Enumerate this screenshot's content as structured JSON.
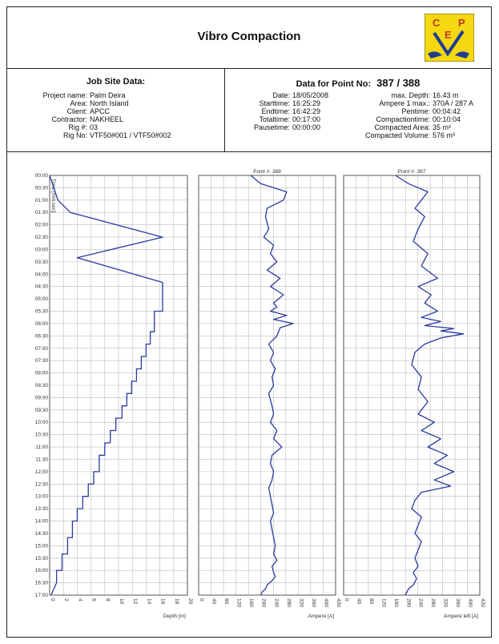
{
  "header": {
    "title": "Vibro Compaction",
    "logo_text": [
      "C",
      "E",
      "P"
    ],
    "logo_colors": {
      "bg": "#f5d712",
      "mark": "#1f3e91"
    }
  },
  "job_site": {
    "title": "Job Site Data:",
    "rows": [
      {
        "key": "Project name:",
        "value": "Palm Deira"
      },
      {
        "key": "Area:",
        "value": "North Island"
      },
      {
        "key": "Client:",
        "value": "APCC"
      },
      {
        "key": "Contractor:",
        "value": "NAKHEEL"
      },
      {
        "key": "Rig #:",
        "value": "03"
      },
      {
        "key": "Rig No:",
        "value": "VTF50#001 / VTF50#002"
      }
    ]
  },
  "point_data": {
    "title_prefix": "Data for Point No:",
    "title_value": "387 / 388",
    "left_rows": [
      {
        "key": "Date:",
        "value": "18/05/2008"
      },
      {
        "key": "Starttime:",
        "value": "16:25:29"
      },
      {
        "key": "Endtime:",
        "value": "16:42:29"
      },
      {
        "key": "Totaltime:",
        "value": "00:17:00"
      },
      {
        "key": "Pausetime:",
        "value": "00:00:00"
      }
    ],
    "right_rows": [
      {
        "key": "max. Depth:",
        "value": "16.43 m"
      },
      {
        "key": "Ampere 1 max.:",
        "value": "370A  / 287 A"
      },
      {
        "key": "Pentime:",
        "value": "00:04:42"
      },
      {
        "key": "Compactiontime:",
        "value": "00:10:04"
      },
      {
        "key": "Compacted Area:",
        "value": "35 m²"
      },
      {
        "key": "Compacted Volume:",
        "value": "576 m³"
      }
    ]
  },
  "chart_data": [
    {
      "type": "line",
      "title": "",
      "ylabel": "Time [min:sec]",
      "xlabel": "Depth [m]",
      "xlim": [
        0,
        20
      ],
      "xticks": [
        "0",
        "2",
        "4",
        "6",
        "8",
        "10",
        "12",
        "14",
        "16",
        "18",
        "20"
      ],
      "yticks": [
        "00:00",
        "00:30",
        "01:00",
        "01:30",
        "02:00",
        "02:30",
        "03:00",
        "03:30",
        "04:00",
        "04:30",
        "05:00",
        "05:30",
        "06:00",
        "06:30",
        "07:00",
        "07:30",
        "08:00",
        "08:30",
        "09:00",
        "09:30",
        "10:00",
        "10:30",
        "11:00",
        "11:30",
        "12:00",
        "12:30",
        "13:00",
        "13:30",
        "14:00",
        "14:30",
        "15:00",
        "15:30",
        "16:00",
        "16:30",
        "17:00"
      ],
      "ylim_seconds": [
        0,
        1020
      ],
      "series": [
        {
          "color": "#2b3a9e",
          "x_depth": [
            0,
            1.2,
            3,
            16.4,
            4,
            16.4,
            16.4,
            15.2,
            15.2,
            14.6,
            14.6,
            14.0,
            14.0,
            13.3,
            13.3,
            12.6,
            12.6,
            11.9,
            11.9,
            11.2,
            11.2,
            10.5,
            10.5,
            9.6,
            9.6,
            8.8,
            8.8,
            8.0,
            8.0,
            7.2,
            7.2,
            6.4,
            6.4,
            5.6,
            5.6,
            4.8,
            4.8,
            4.0,
            4.0,
            3.3,
            3.3,
            2.6,
            2.6,
            1.8,
            1.8,
            1.0,
            1.0,
            0.2
          ],
          "y_seconds": [
            0,
            60,
            90,
            150,
            200,
            260,
            330,
            330,
            380,
            380,
            410,
            410,
            440,
            440,
            470,
            470,
            500,
            500,
            530,
            530,
            560,
            560,
            590,
            590,
            620,
            620,
            650,
            650,
            680,
            680,
            720,
            720,
            750,
            750,
            780,
            780,
            810,
            810,
            840,
            840,
            880,
            880,
            920,
            920,
            960,
            960,
            990,
            1020
          ]
        }
      ]
    },
    {
      "type": "line",
      "title": "Point #: 388",
      "xlabel": "Ampere [A]",
      "xlim": [
        0,
        420
      ],
      "xticks": [
        "0",
        "40",
        "80",
        "120",
        "160",
        "200",
        "240",
        "280",
        "320",
        "360",
        "400",
        "420"
      ],
      "ylim_seconds": [
        0,
        1020
      ],
      "series": [
        {
          "color": "#2b3a9e",
          "x_ampere": [
            160,
            190,
            270,
            260,
            210,
            205,
            215,
            200,
            230,
            220,
            240,
            210,
            250,
            220,
            260,
            230,
            240,
            220,
            270,
            230,
            290,
            250,
            240,
            215,
            230,
            220,
            235,
            225,
            230,
            215,
            225,
            230,
            220,
            240,
            230,
            255,
            225,
            220,
            230,
            225,
            215,
            220,
            225,
            230,
            220,
            225,
            230,
            235,
            230,
            240,
            225,
            230,
            235,
            225,
            210,
            205,
            195,
            190
          ],
          "y_seconds": [
            0,
            20,
            40,
            60,
            80,
            100,
            130,
            150,
            170,
            190,
            210,
            230,
            250,
            270,
            290,
            310,
            320,
            330,
            340,
            350,
            360,
            370,
            390,
            410,
            430,
            450,
            470,
            490,
            510,
            530,
            560,
            580,
            600,
            620,
            640,
            660,
            680,
            700,
            720,
            740,
            760,
            780,
            800,
            820,
            840,
            860,
            880,
            900,
            920,
            935,
            950,
            965,
            975,
            985,
            995,
            1005,
            1012,
            1020
          ]
        }
      ]
    },
    {
      "type": "line",
      "title": "Point #: 387",
      "xlabel": "Ampere left [A]",
      "xlim": [
        0,
        420
      ],
      "xticks": [
        "0",
        "40",
        "80",
        "120",
        "160",
        "200",
        "240",
        "280",
        "320",
        "360",
        "400",
        "420"
      ],
      "ylim_seconds": [
        0,
        1020
      ],
      "series": [
        {
          "color": "#2b3a9e",
          "x_ampere": [
            160,
            200,
            260,
            240,
            220,
            250,
            230,
            215,
            260,
            240,
            290,
            230,
            270,
            250,
            290,
            240,
            300,
            250,
            340,
            300,
            370,
            300,
            250,
            220,
            210,
            240,
            230,
            260,
            230,
            280,
            240,
            300,
            260,
            320,
            280,
            340,
            280,
            330,
            240,
            220,
            210,
            240,
            230,
            220,
            240,
            230,
            220,
            230,
            215,
            225,
            215,
            200,
            195,
            190
          ],
          "y_seconds": [
            0,
            20,
            40,
            60,
            80,
            100,
            130,
            160,
            190,
            220,
            250,
            270,
            290,
            310,
            330,
            345,
            355,
            365,
            372,
            378,
            385,
            395,
            410,
            430,
            460,
            490,
            520,
            550,
            580,
            600,
            620,
            640,
            660,
            680,
            700,
            720,
            740,
            755,
            770,
            790,
            810,
            830,
            850,
            870,
            890,
            910,
            930,
            950,
            965,
            980,
            995,
            1005,
            1013,
            1020
          ]
        }
      ]
    }
  ]
}
